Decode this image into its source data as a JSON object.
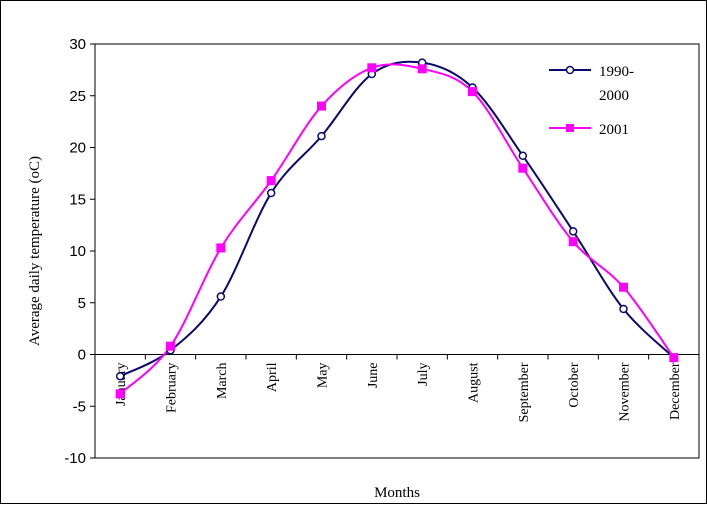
{
  "chart_data": {
    "type": "line",
    "title": "",
    "xlabel": "Months",
    "ylabel": "Average daily temperature (oC)",
    "categories": [
      "January",
      "February",
      "March",
      "April",
      "May",
      "June",
      "July",
      "August",
      "September",
      "October",
      "November",
      "December"
    ],
    "ylim": [
      -10,
      30
    ],
    "yticks": [
      -10,
      -5,
      0,
      5,
      10,
      15,
      20,
      25,
      30
    ],
    "grid": false,
    "legend_position": "top-right",
    "series": [
      {
        "name": "1990-2000",
        "legend_lines": [
          "1990-",
          "2000"
        ],
        "color": "#0a0a6e",
        "marker": "circle-open",
        "values": [
          -2.1,
          0.4,
          5.6,
          15.6,
          21.1,
          27.1,
          28.2,
          25.8,
          19.2,
          11.9,
          4.4,
          -0.3
        ]
      },
      {
        "name": "2001",
        "legend_lines": [
          "2001"
        ],
        "color": "#ff00ff",
        "marker": "square",
        "values": [
          -3.8,
          0.8,
          10.3,
          16.8,
          24.0,
          27.7,
          27.6,
          25.4,
          18.0,
          10.9,
          6.5,
          -0.3
        ]
      }
    ]
  }
}
